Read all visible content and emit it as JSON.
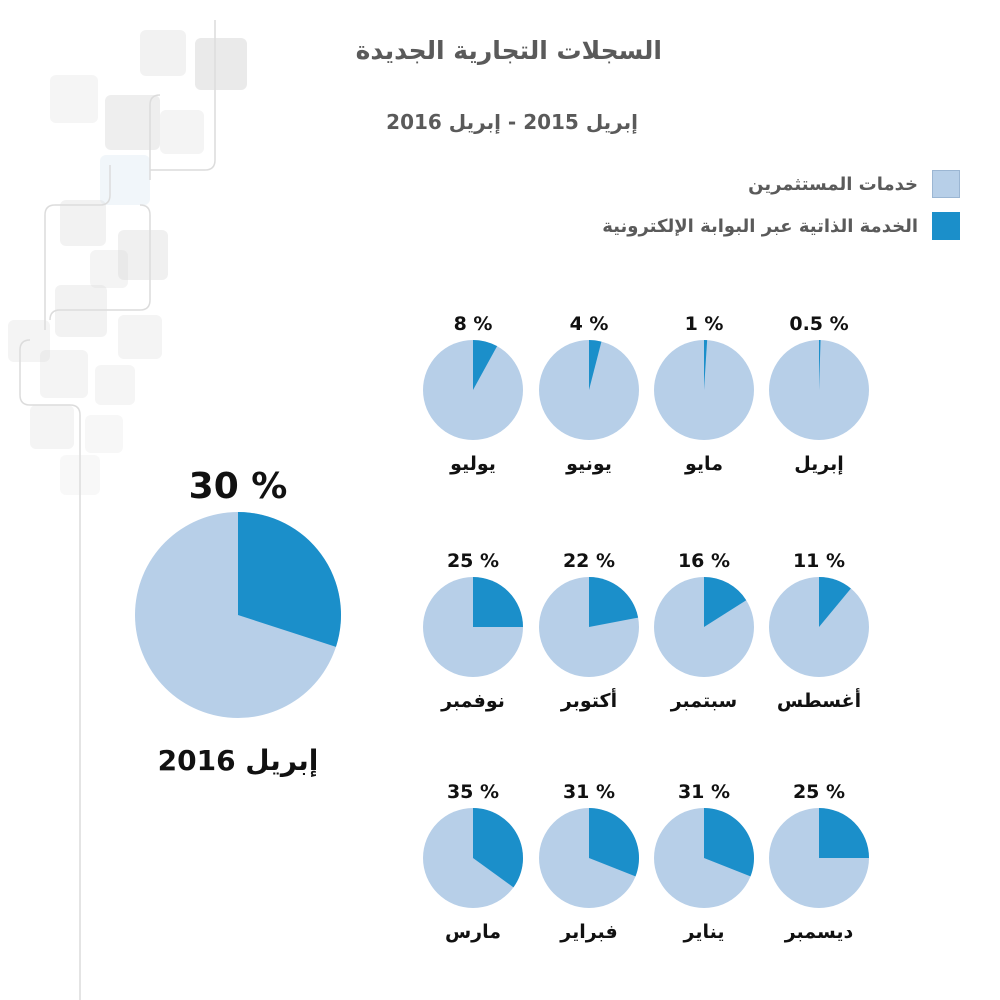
{
  "title": "السجلات التجارية الجديدة",
  "subtitle": "إبريل 2015 - إبريل 2016",
  "colors": {
    "base": "#b7cfe8",
    "highlight": "#1b8fca",
    "title_text": "#5a5a5a",
    "label_text": "#111111"
  },
  "legend": [
    {
      "label": "خدمات المستثمرين",
      "color": "#b7cfe8"
    },
    {
      "label": "الخدمة الذاتية عبر البوابة الإلكترونية",
      "color": "#1b8fca"
    }
  ],
  "chart_data": {
    "type": "pie",
    "title": "السجلات التجارية الجديدة",
    "subtitle": "إبريل 2015 - إبريل 2016",
    "series": [
      "خدمات المستثمرين",
      "الخدمة الذاتية عبر البوابة الإلكترونية"
    ],
    "months": [
      {
        "month": "إبريل",
        "self_service_pct": 0.5,
        "label": "0.5 %"
      },
      {
        "month": "مايو",
        "self_service_pct": 1,
        "label": "1 %"
      },
      {
        "month": "يونيو",
        "self_service_pct": 4,
        "label": "4 %"
      },
      {
        "month": "يوليو",
        "self_service_pct": 8,
        "label": "8 %"
      },
      {
        "month": "أغسطس",
        "self_service_pct": 11,
        "label": "11 %"
      },
      {
        "month": "سبتمبر",
        "self_service_pct": 16,
        "label": "16 %"
      },
      {
        "month": "أكتوبر",
        "self_service_pct": 22,
        "label": "22 %"
      },
      {
        "month": "نوفمبر",
        "self_service_pct": 25,
        "label": "25 %"
      },
      {
        "month": "ديسمبر",
        "self_service_pct": 25,
        "label": "25 %"
      },
      {
        "month": "يناير",
        "self_service_pct": 31,
        "label": "31 %"
      },
      {
        "month": "فبراير",
        "self_service_pct": 31,
        "label": "31 %"
      },
      {
        "month": "مارس",
        "self_service_pct": 35,
        "label": "35 %"
      }
    ],
    "highlight": {
      "month": "إبريل 2016",
      "self_service_pct": 30,
      "label": "30 %"
    }
  }
}
